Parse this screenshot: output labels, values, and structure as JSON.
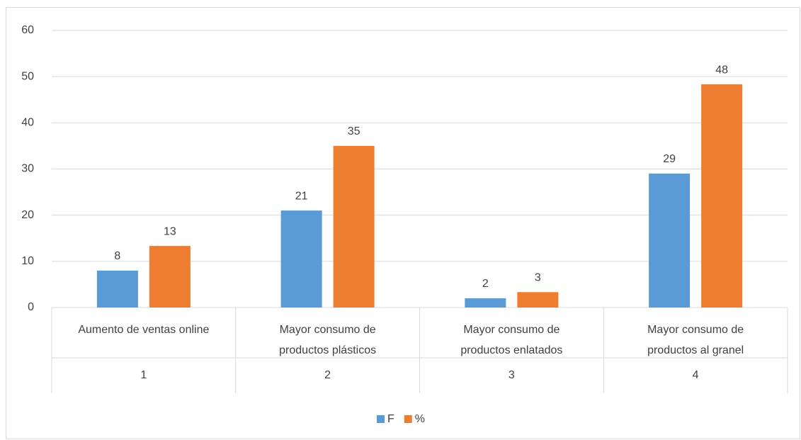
{
  "chart_data": {
    "type": "bar",
    "categories": [
      "Aumento de ventas online",
      "Mayor consumo de productos plásticos",
      "Mayor consumo de productos enlatados",
      "Mayor consumo de productos al granel"
    ],
    "category_groups": [
      "1",
      "2",
      "3",
      "4"
    ],
    "series": [
      {
        "name": "F",
        "color": "#5b9bd5",
        "values": [
          8,
          21,
          2,
          29
        ]
      },
      {
        "name": "%",
        "color": "#ed7d31",
        "values": [
          13.33,
          35,
          3.33,
          48.33
        ],
        "value_labels": [
          "13",
          "35",
          "3",
          "48"
        ]
      }
    ],
    "ylim": [
      0,
      60
    ],
    "yticks": [
      0,
      10,
      20,
      30,
      40,
      50,
      60
    ],
    "grid": true,
    "legend": "bottom"
  }
}
